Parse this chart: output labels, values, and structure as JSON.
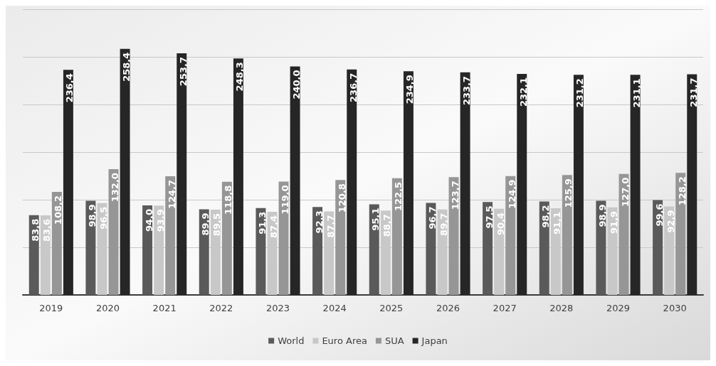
{
  "chart_data": {
    "type": "bar",
    "categories": [
      "2019",
      "2020",
      "2021",
      "2022",
      "2023",
      "2024",
      "2025",
      "2026",
      "2027",
      "2028",
      "2029",
      "2030"
    ],
    "series": [
      {
        "name": "World",
        "color": "#5a5a5a",
        "values": [
          83.8,
          98.9,
          94.0,
          89.9,
          91.3,
          92.3,
          95.1,
          96.7,
          97.5,
          98.2,
          98.9,
          99.6
        ],
        "value_labels": [
          "83,8",
          "98,9",
          "94,0",
          "89,9",
          "91,3",
          "92,3",
          "95,1",
          "96,7",
          "97,5",
          "98,2",
          "98,9",
          "99,6"
        ]
      },
      {
        "name": "Euro Area",
        "color": "#c8c8c8",
        "values": [
          83.6,
          96.5,
          93.9,
          89.5,
          87.4,
          87.7,
          88.7,
          89.7,
          90.4,
          91.1,
          91.9,
          92.9
        ],
        "value_labels": [
          "83,6",
          "96,5",
          "93,9",
          "89,5",
          "87,4",
          "87,7",
          "88,7",
          "89,7",
          "90,4",
          "91,1",
          "91,9",
          "92,9"
        ]
      },
      {
        "name": "SUA",
        "color": "#969696",
        "values": [
          108.2,
          132.0,
          124.7,
          118.8,
          119.0,
          120.8,
          122.5,
          123.7,
          124.9,
          125.9,
          127.0,
          128.2
        ],
        "value_labels": [
          "108,2",
          "132,0",
          "124,7",
          "118,8",
          "119,0",
          "120,8",
          "122,5",
          "123,7",
          "124,9",
          "125,9",
          "127,0",
          "128,2"
        ]
      },
      {
        "name": "Japan",
        "color": "#262626",
        "values": [
          236.4,
          258.4,
          253.7,
          248.3,
          240.0,
          236.7,
          234.9,
          233.7,
          232.1,
          231.2,
          231.1,
          231.7
        ],
        "value_labels": [
          "236,4",
          "258,4",
          "253,7",
          "248,3",
          "240,0",
          "236,7",
          "234,9",
          "233,7",
          "232,1",
          "231,2",
          "231,1",
          "231,7"
        ]
      }
    ],
    "ylim": [
      0,
      300
    ],
    "yticks": [
      {
        "value": 0,
        "label": null
      },
      {
        "value": 50,
        "label": null
      },
      {
        "value": 100,
        "label": null
      },
      {
        "value": 150,
        "label": null
      },
      {
        "value": 200,
        "label": null
      },
      {
        "value": 250,
        "label": null
      },
      {
        "value": 300,
        "label": null
      }
    ],
    "tick_labels": "x",
    "grid": "y",
    "legend": "bottom"
  }
}
